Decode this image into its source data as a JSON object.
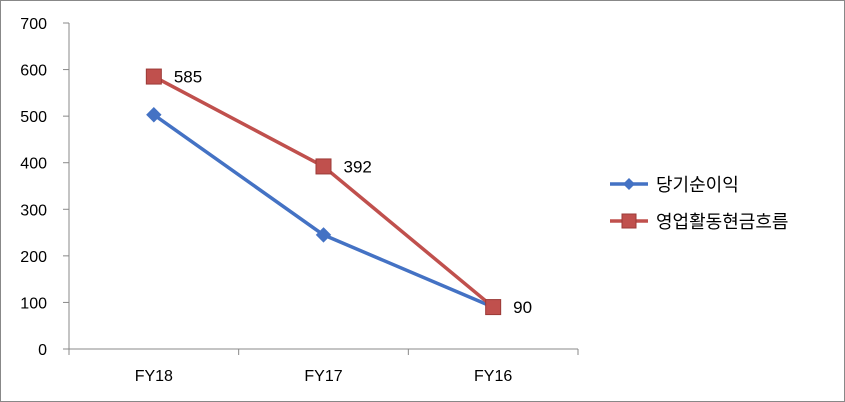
{
  "chart_data": {
    "type": "line",
    "categories": [
      "FY18",
      "FY17",
      "FY16"
    ],
    "ylim": [
      0,
      700
    ],
    "yticks": [
      0,
      100,
      200,
      300,
      400,
      500,
      600,
      700
    ],
    "grid": false,
    "legend_position": "right",
    "series": [
      {
        "name": "당기순이익",
        "values": [
          503,
          245,
          90
        ],
        "color": "#4472C4",
        "marker": "diamond",
        "labels": [
          "",
          "",
          ""
        ]
      },
      {
        "name": "영업활동현금흐름",
        "values": [
          585,
          392,
          90
        ],
        "color": "#C0504D",
        "marker": "square",
        "labels": [
          "585",
          "392",
          "90"
        ]
      }
    ]
  }
}
